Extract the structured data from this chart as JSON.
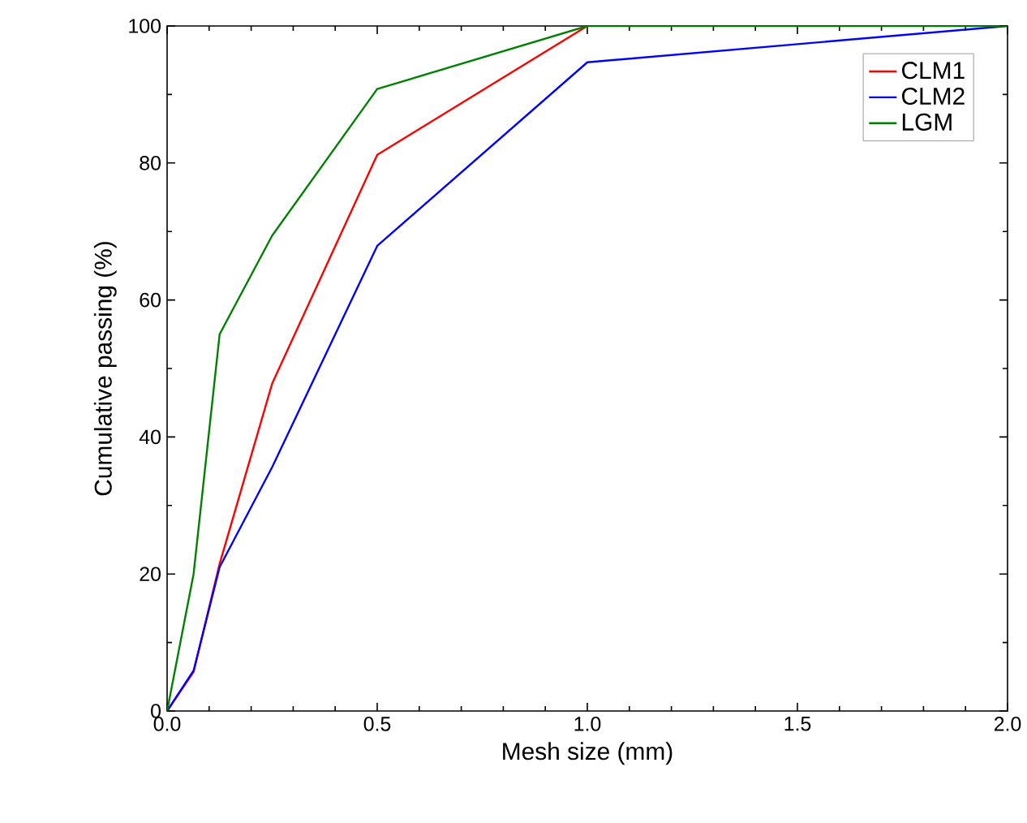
{
  "chart_data": {
    "type": "line",
    "xlabel": "Mesh size (mm)",
    "ylabel": "Cumulative passing (%)",
    "x": [
      0,
      0.063,
      0.125,
      0.25,
      0.5,
      1,
      2
    ],
    "series": [
      {
        "name": "CLM1",
        "color": "#ff0000",
        "values": [
          0,
          5.7,
          21.5,
          47.8,
          81.2,
          100,
          null
        ]
      },
      {
        "name": "CLM2",
        "color": "#0000ff",
        "values": [
          0,
          5.9,
          21,
          35.6,
          67.9,
          94.7,
          100
        ]
      },
      {
        "name": "LGM",
        "color": "#008000",
        "values": [
          0,
          20,
          55,
          69.4,
          90.8,
          100,
          100
        ]
      }
    ],
    "xlim": [
      0,
      2
    ],
    "ylim": [
      0,
      100
    ],
    "xticks": [
      {
        "value": 0,
        "label": "0.0"
      },
      {
        "value": 0.5,
        "label": "0.5"
      },
      {
        "value": 1,
        "label": "1.0"
      },
      {
        "value": 1.5,
        "label": "1.5"
      },
      {
        "value": 2,
        "label": "2.0"
      }
    ],
    "yticks": [
      0,
      20,
      40,
      60,
      80,
      100
    ],
    "grid": false,
    "legend": "top right",
    "marker": "none",
    "line_style": "solid"
  }
}
